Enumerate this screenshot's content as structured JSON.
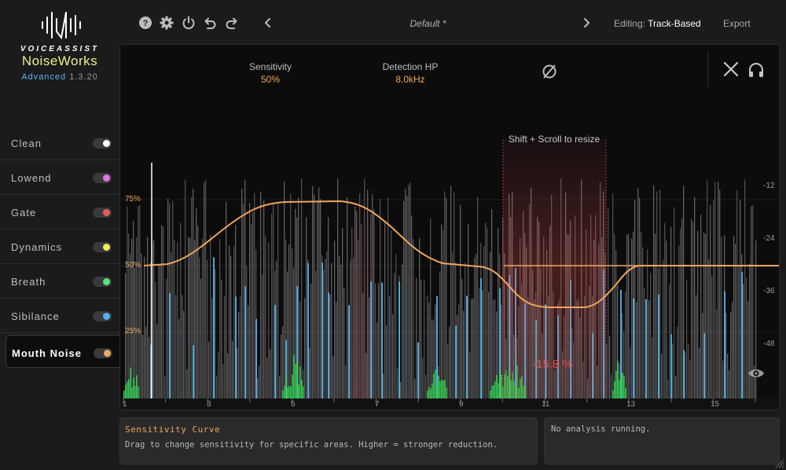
{
  "brand": {
    "small": "VOICEASSIST",
    "name": "NoiseWorks",
    "tier": "Advanced",
    "version": "1.3.20"
  },
  "modules": [
    {
      "label": "Clean",
      "color": "#ffffff"
    },
    {
      "label": "Lowend",
      "color": "#e673e6"
    },
    {
      "label": "Gate",
      "color": "#e65a5a"
    },
    {
      "label": "Dynamics",
      "color": "#f2ec5a"
    },
    {
      "label": "Breath",
      "color": "#5ae67a"
    },
    {
      "label": "Sibilance",
      "color": "#4fb3f0"
    },
    {
      "label": "Mouth Noise",
      "color": "#f0a65a",
      "active": true
    }
  ],
  "toolbar": {
    "icons": [
      "help-icon",
      "gear-icon",
      "power-icon",
      "undo-icon",
      "redo-icon"
    ],
    "preset": "Default *",
    "editing_label": "Editing:",
    "editing_value": "Track-Based",
    "export": "Export"
  },
  "params": {
    "sensitivity_label": "Sensitivity",
    "sensitivity_value": "50%",
    "hp_label": "Detection HP",
    "hp_value": "8.0kHz"
  },
  "viz": {
    "hint": "Shift + Scroll to resize",
    "reduction": "-15.8 %",
    "pct_labels": [
      "75%",
      "50%",
      "25%"
    ],
    "db_labels": [
      "-12",
      "-24",
      "-36",
      "-48"
    ],
    "bar_numbers": [
      "1",
      "3",
      "5",
      "7",
      "9",
      "11",
      "13",
      "15"
    ],
    "accent": "#f0a65a",
    "highlight": "#e04b4b"
  },
  "info": {
    "title": "Sensitivity Curve",
    "text": "Drag to change sensitivity for specific areas. Higher = stronger reduction.",
    "status": "No analysis running."
  }
}
